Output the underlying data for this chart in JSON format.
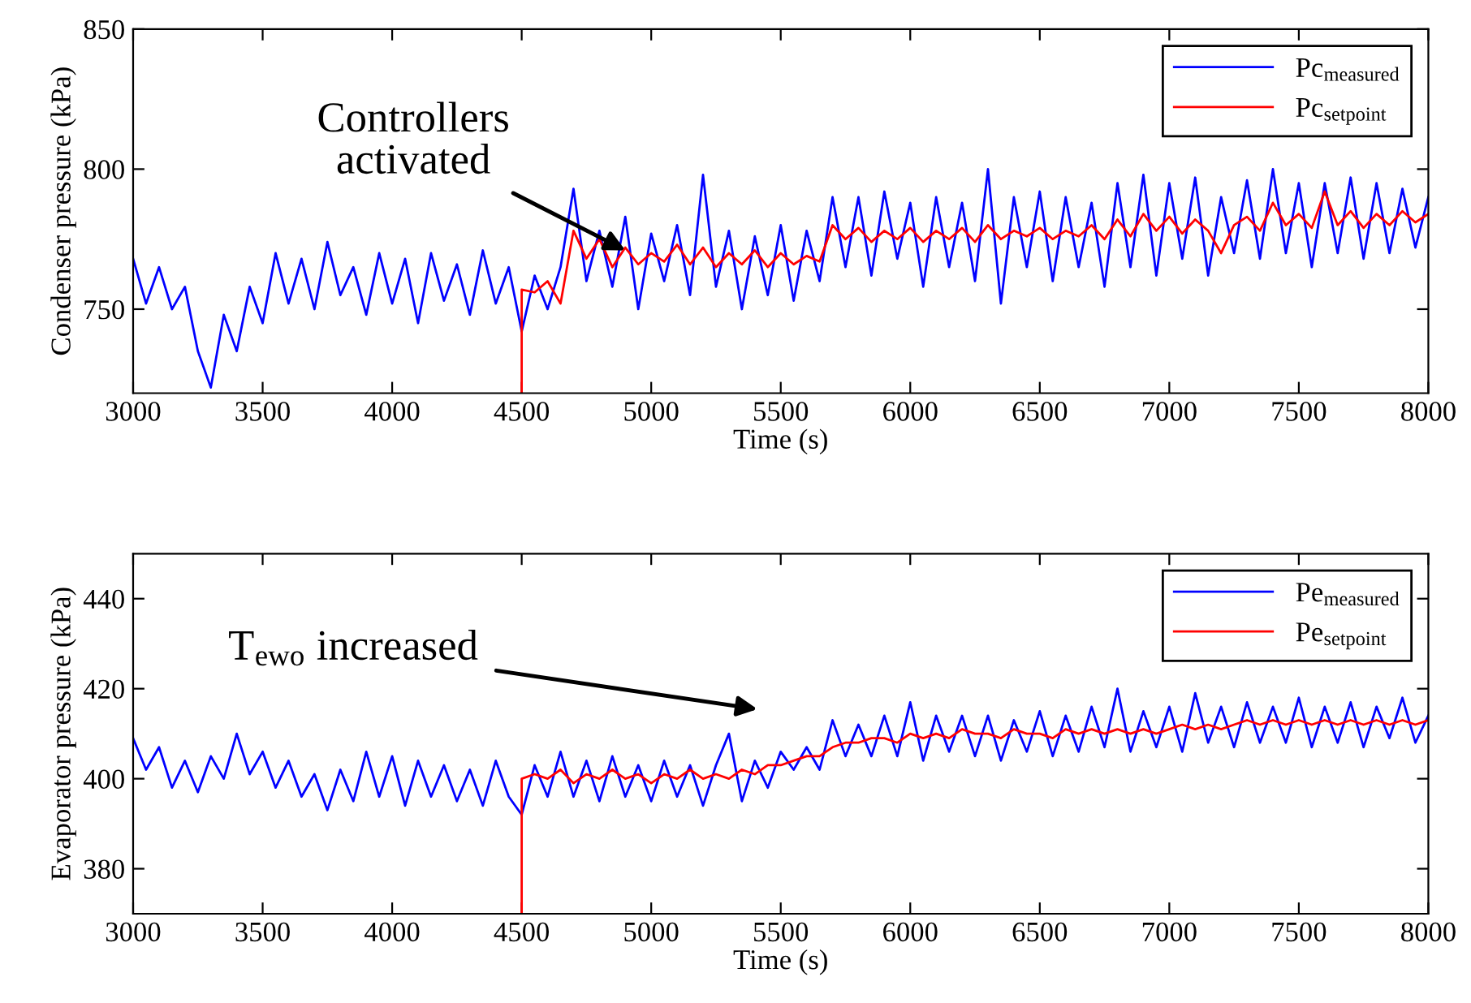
{
  "chart_data": [
    {
      "type": "line",
      "xlabel": "Time (s)",
      "ylabel": "Condenser pressure (kPa)",
      "xlim": [
        3000,
        8000
      ],
      "ylim": [
        720,
        850
      ],
      "xticks": [
        3000,
        3500,
        4000,
        4500,
        5000,
        5500,
        6000,
        6500,
        7000,
        7500,
        8000
      ],
      "yticks": [
        750,
        800,
        850
      ],
      "grid": false,
      "legend": "top right",
      "annotations": [
        {
          "text": "Controllers\nactivated",
          "x": 4900,
          "y": 771
        }
      ],
      "series": [
        {
          "name": "Pc$_{measured}$",
          "color": "#0000ff",
          "x": [
            3000,
            3050,
            3100,
            3150,
            3200,
            3250,
            3300,
            3350,
            3400,
            3450,
            3500,
            3550,
            3600,
            3650,
            3700,
            3750,
            3800,
            3850,
            3900,
            3950,
            4000,
            4050,
            4100,
            4150,
            4200,
            4250,
            4300,
            4350,
            4400,
            4450,
            4500,
            4550,
            4600,
            4650,
            4700,
            4750,
            4800,
            4850,
            4900,
            4950,
            5000,
            5050,
            5100,
            5150,
            5200,
            5250,
            5300,
            5350,
            5400,
            5450,
            5500,
            5550,
            5600,
            5650,
            5700,
            5750,
            5800,
            5850,
            5900,
            5950,
            6000,
            6050,
            6100,
            6150,
            6200,
            6250,
            6300,
            6350,
            6400,
            6450,
            6500,
            6550,
            6600,
            6650,
            6700,
            6750,
            6800,
            6850,
            6900,
            6950,
            7000,
            7050,
            7100,
            7150,
            7200,
            7250,
            7300,
            7350,
            7400,
            7450,
            7500,
            7550,
            7600,
            7650,
            7700,
            7750,
            7800,
            7850,
            7900,
            7950,
            8000
          ],
          "values": [
            768,
            752,
            765,
            750,
            758,
            735,
            722,
            748,
            735,
            758,
            745,
            770,
            752,
            768,
            750,
            774,
            755,
            765,
            748,
            770,
            752,
            768,
            745,
            770,
            753,
            766,
            748,
            771,
            752,
            765,
            742,
            762,
            750,
            765,
            793,
            760,
            778,
            758,
            783,
            750,
            777,
            760,
            780,
            755,
            798,
            758,
            778,
            750,
            776,
            755,
            780,
            753,
            778,
            760,
            790,
            765,
            790,
            762,
            792,
            768,
            788,
            758,
            790,
            765,
            788,
            760,
            800,
            752,
            790,
            765,
            792,
            760,
            790,
            765,
            788,
            758,
            795,
            765,
            798,
            762,
            795,
            768,
            797,
            762,
            790,
            770,
            796,
            768,
            800,
            770,
            795,
            765,
            795,
            770,
            797,
            768,
            795,
            770,
            793,
            772,
            790
          ]
        },
        {
          "name": "Pc$_{setpoint}$",
          "color": "#ff0000",
          "x": [
            4500,
            4500,
            4550,
            4600,
            4650,
            4700,
            4750,
            4800,
            4850,
            4900,
            4950,
            5000,
            5050,
            5100,
            5150,
            5200,
            5250,
            5300,
            5350,
            5400,
            5450,
            5500,
            5550,
            5600,
            5650,
            5700,
            5750,
            5800,
            5850,
            5900,
            5950,
            6000,
            6050,
            6100,
            6150,
            6200,
            6250,
            6300,
            6350,
            6400,
            6450,
            6500,
            6550,
            6600,
            6650,
            6700,
            6750,
            6800,
            6850,
            6900,
            6950,
            7000,
            7050,
            7100,
            7150,
            7200,
            7250,
            7300,
            7350,
            7400,
            7450,
            7500,
            7550,
            7600,
            7650,
            7700,
            7750,
            7800,
            7850,
            7900,
            7950,
            8000
          ],
          "values": [
            720,
            757,
            756,
            760,
            752,
            778,
            768,
            775,
            765,
            772,
            766,
            770,
            767,
            773,
            766,
            772,
            765,
            770,
            766,
            771,
            765,
            770,
            766,
            769,
            767,
            780,
            775,
            779,
            774,
            778,
            775,
            779,
            774,
            778,
            775,
            779,
            774,
            780,
            775,
            778,
            776,
            779,
            775,
            778,
            776,
            780,
            775,
            782,
            776,
            784,
            778,
            783,
            777,
            782,
            778,
            770,
            780,
            783,
            778,
            788,
            780,
            784,
            779,
            792,
            780,
            785,
            779,
            784,
            780,
            785,
            781,
            784
          ]
        }
      ]
    },
    {
      "type": "line",
      "xlabel": "Time (s)",
      "ylabel": "Evaporator pressure (kPa)",
      "xlim": [
        3000,
        8000
      ],
      "ylim": [
        370,
        450
      ],
      "xticks": [
        3000,
        3500,
        4000,
        4500,
        5000,
        5500,
        6000,
        6500,
        7000,
        7500,
        8000
      ],
      "yticks": [
        380,
        400,
        420,
        440
      ],
      "grid": false,
      "legend": "top right",
      "annotations": [
        "T$_{ewo}$ increased"
      ],
      "series": [
        {
          "name": "Pe$_{measured}$",
          "color": "#0000ff",
          "x": [
            3000,
            3050,
            3100,
            3150,
            3200,
            3250,
            3300,
            3350,
            3400,
            3450,
            3500,
            3550,
            3600,
            3650,
            3700,
            3750,
            3800,
            3850,
            3900,
            3950,
            4000,
            4050,
            4100,
            4150,
            4200,
            4250,
            4300,
            4350,
            4400,
            4450,
            4500,
            4550,
            4600,
            4650,
            4700,
            4750,
            4800,
            4850,
            4900,
            4950,
            5000,
            5050,
            5100,
            5150,
            5200,
            5250,
            5300,
            5350,
            5400,
            5450,
            5500,
            5550,
            5600,
            5650,
            5700,
            5750,
            5800,
            5850,
            5900,
            5950,
            6000,
            6050,
            6100,
            6150,
            6200,
            6250,
            6300,
            6350,
            6400,
            6450,
            6500,
            6550,
            6600,
            6650,
            6700,
            6750,
            6800,
            6850,
            6900,
            6950,
            7000,
            7050,
            7100,
            7150,
            7200,
            7250,
            7300,
            7350,
            7400,
            7450,
            7500,
            7550,
            7600,
            7650,
            7700,
            7750,
            7800,
            7850,
            7900,
            7950,
            8000
          ],
          "values": [
            409,
            402,
            407,
            398,
            404,
            397,
            405,
            400,
            410,
            401,
            406,
            398,
            404,
            396,
            401,
            393,
            402,
            395,
            406,
            396,
            405,
            394,
            404,
            396,
            403,
            395,
            402,
            394,
            404,
            396,
            392,
            403,
            396,
            406,
            396,
            404,
            395,
            405,
            396,
            403,
            395,
            404,
            396,
            403,
            394,
            403,
            410,
            395,
            404,
            398,
            406,
            402,
            407,
            402,
            413,
            405,
            412,
            405,
            414,
            405,
            417,
            404,
            414,
            406,
            414,
            405,
            414,
            404,
            413,
            406,
            415,
            405,
            414,
            406,
            416,
            407,
            420,
            406,
            415,
            407,
            416,
            406,
            419,
            408,
            416,
            407,
            417,
            408,
            416,
            408,
            418,
            407,
            416,
            408,
            417,
            407,
            416,
            409,
            418,
            408,
            414
          ]
        },
        {
          "name": "Pe$_{setpoint}$",
          "color": "#ff0000",
          "x": [
            4500,
            4500,
            4550,
            4600,
            4650,
            4700,
            4750,
            4800,
            4850,
            4900,
            4950,
            5000,
            5050,
            5100,
            5150,
            5200,
            5250,
            5300,
            5350,
            5400,
            5450,
            5500,
            5550,
            5600,
            5650,
            5700,
            5750,
            5800,
            5850,
            5900,
            5950,
            6000,
            6050,
            6100,
            6150,
            6200,
            6250,
            6300,
            6350,
            6400,
            6450,
            6500,
            6550,
            6600,
            6650,
            6700,
            6750,
            6800,
            6850,
            6900,
            6950,
            7000,
            7050,
            7100,
            7150,
            7200,
            7250,
            7300,
            7350,
            7400,
            7450,
            7500,
            7550,
            7600,
            7650,
            7700,
            7750,
            7800,
            7850,
            7900,
            7950,
            8000
          ],
          "values": [
            370,
            400,
            401,
            400,
            402,
            399,
            401,
            400,
            402,
            400,
            401,
            399,
            401,
            400,
            402,
            400,
            401,
            400,
            402,
            401,
            403,
            403,
            404,
            405,
            405,
            407,
            408,
            408,
            409,
            409,
            408,
            410,
            409,
            410,
            409,
            411,
            410,
            410,
            409,
            411,
            410,
            410,
            409,
            411,
            410,
            411,
            410,
            411,
            410,
            411,
            410,
            411,
            412,
            411,
            412,
            411,
            412,
            413,
            412,
            413,
            412,
            413,
            412,
            413,
            412,
            413,
            412,
            413,
            412,
            413,
            412,
            413
          ]
        }
      ]
    }
  ]
}
